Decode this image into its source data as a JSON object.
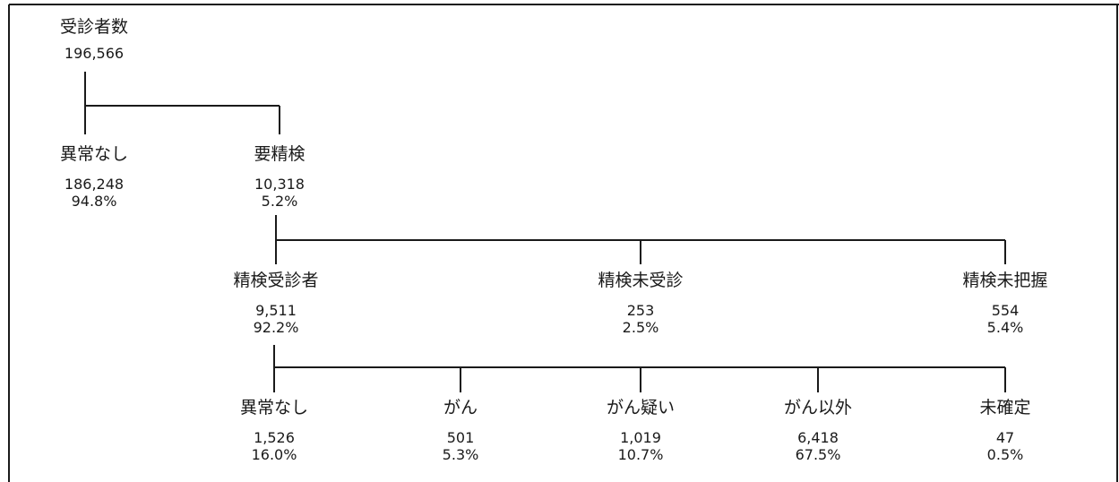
{
  "root": {
    "label": "受診者数",
    "count": "196,566",
    "pct": ""
  },
  "normal": {
    "label": "異常なし",
    "count": "186,248",
    "pct": "94.8%"
  },
  "needs_exam": {
    "label": "要精検",
    "count": "10,318",
    "pct": "5.2%"
  },
  "examined": {
    "label": "精検受診者",
    "count": "9,511",
    "pct": "92.2%"
  },
  "not_examined": {
    "label": "精検未受診",
    "count": "253",
    "pct": "2.5%"
  },
  "unknown": {
    "label": "精検未把握",
    "count": "554",
    "pct": "5.4%"
  },
  "res_normal": {
    "label": "異常なし",
    "count": "1,526",
    "pct": "16.0%"
  },
  "res_cancer": {
    "label": "がん",
    "count": "501",
    "pct": "5.3%"
  },
  "res_suspected": {
    "label": "がん疑い",
    "count": "1,019",
    "pct": "10.7%"
  },
  "res_non_cancer": {
    "label": "がん以外",
    "count": "6,418",
    "pct": "67.5%"
  },
  "res_undetermined": {
    "label": "未確定",
    "count": "47",
    "pct": "0.5%"
  }
}
